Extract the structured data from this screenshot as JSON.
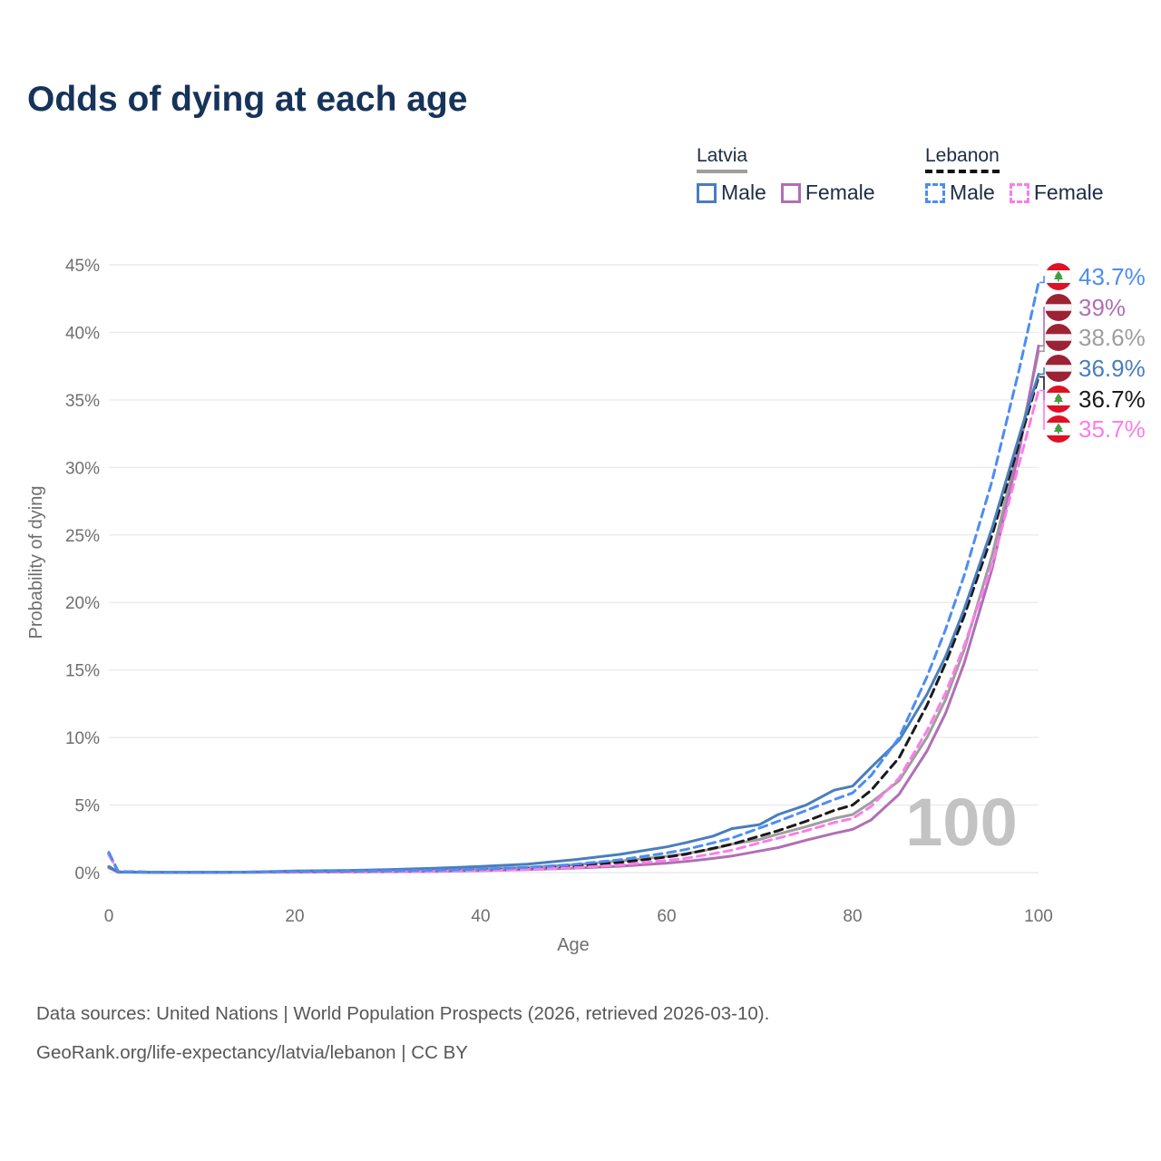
{
  "header": {
    "title": "Odds of dying at each age"
  },
  "legend": {
    "groups": [
      {
        "label": "Latvia",
        "underline": "solid",
        "underline_color": "#9e9e9e",
        "items": [
          {
            "label": "Male",
            "color": "#4a7ebb",
            "dash": "solid"
          },
          {
            "label": "Female",
            "color": "#b06fb5",
            "dash": "solid"
          }
        ]
      },
      {
        "label": "Lebanon",
        "underline": "dashed",
        "underline_color": "#111111",
        "items": [
          {
            "label": "Male",
            "color": "#4d8df2",
            "dash": "dashed"
          },
          {
            "label": "Female",
            "color": "#fb7de9",
            "dash": "dashed"
          }
        ]
      }
    ]
  },
  "chart_data": {
    "type": "line",
    "title": "Odds of dying at each age",
    "xlabel": "Age",
    "ylabel": "Probability of dying",
    "xlim": [
      0,
      100
    ],
    "ylim": [
      0,
      45
    ],
    "grid": "horizontal",
    "legend_position": "top-right",
    "age_counter": "100",
    "x_tick_values": [
      0,
      20,
      40,
      60,
      80,
      100
    ],
    "x_tick_labels": [
      "0",
      "20",
      "40",
      "60",
      "80",
      "100"
    ],
    "y_tick_values": [
      0,
      5,
      10,
      15,
      20,
      25,
      30,
      35,
      40,
      45
    ],
    "y_tick_labels": [
      "0%",
      "5%",
      "10%",
      "15%",
      "20%",
      "25%",
      "30%",
      "35%",
      "40%",
      "45%"
    ],
    "ages": [
      0,
      1,
      5,
      10,
      15,
      20,
      25,
      30,
      35,
      40,
      45,
      50,
      55,
      60,
      62,
      65,
      67,
      70,
      72,
      75,
      78,
      80,
      82,
      85,
      88,
      90,
      92,
      95,
      98,
      100
    ],
    "series": [
      {
        "id": "latvia-total",
        "name": "Latvia Total",
        "country": "latvia",
        "sex": "Total",
        "color": "#9e9e9e",
        "dash": "solid",
        "end_label": "38.6%",
        "values": [
          0.4,
          0.035,
          0.018,
          0.012,
          0.025,
          0.06,
          0.08,
          0.12,
          0.17,
          0.26,
          0.38,
          0.58,
          0.85,
          1.2,
          1.4,
          1.75,
          2.1,
          2.45,
          2.85,
          3.4,
          4.0,
          4.3,
          5.2,
          6.8,
          10.0,
          12.8,
          16.5,
          23.5,
          32.0,
          38.6
        ]
      },
      {
        "id": "latvia-female",
        "name": "Latvia Female",
        "country": "latvia",
        "sex": "Female",
        "color": "#b06fb5",
        "dash": "solid",
        "end_label": "39%",
        "values": [
          0.35,
          0.03,
          0.015,
          0.01,
          0.02,
          0.03,
          0.04,
          0.06,
          0.09,
          0.14,
          0.22,
          0.33,
          0.47,
          0.7,
          0.82,
          1.05,
          1.22,
          1.6,
          1.85,
          2.4,
          2.9,
          3.2,
          3.9,
          5.8,
          9.0,
          11.8,
          15.5,
          22.5,
          31.5,
          39.0
        ]
      },
      {
        "id": "lebanon-total",
        "name": "Lebanon Total",
        "country": "lebanon",
        "sex": "Total",
        "color": "#1a1a1a",
        "dash": "dashed",
        "end_label": "36.7%",
        "values": [
          1.4,
          0.075,
          0.028,
          0.018,
          0.032,
          0.06,
          0.075,
          0.1,
          0.14,
          0.2,
          0.3,
          0.48,
          0.75,
          1.15,
          1.35,
          1.8,
          2.1,
          2.7,
          3.1,
          3.8,
          4.6,
          5.0,
          6.1,
          8.5,
          12.4,
          15.5,
          19.0,
          25.0,
          32.0,
          36.7
        ]
      },
      {
        "id": "lebanon-female",
        "name": "Lebanon Female",
        "country": "lebanon",
        "sex": "Female",
        "color": "#fb7de9",
        "dash": "dashed",
        "end_label": "35.7%",
        "values": [
          1.3,
          0.07,
          0.025,
          0.015,
          0.025,
          0.04,
          0.05,
          0.07,
          0.1,
          0.15,
          0.23,
          0.36,
          0.56,
          0.9,
          1.05,
          1.4,
          1.65,
          2.2,
          2.55,
          3.1,
          3.7,
          4.0,
          4.9,
          7.0,
          10.5,
          13.3,
          16.8,
          22.8,
          30.5,
          35.7
        ]
      },
      {
        "id": "latvia-male",
        "name": "Latvia Male",
        "country": "latvia",
        "sex": "Male",
        "color": "#4a7ebb",
        "dash": "solid",
        "end_label": "36.9%",
        "values": [
          0.45,
          0.04,
          0.02,
          0.015,
          0.035,
          0.12,
          0.15,
          0.22,
          0.32,
          0.45,
          0.62,
          0.95,
          1.35,
          1.9,
          2.2,
          2.7,
          3.25,
          3.55,
          4.3,
          5.0,
          6.1,
          6.4,
          7.8,
          9.8,
          13.2,
          16.0,
          19.5,
          25.5,
          32.5,
          36.9
        ]
      },
      {
        "id": "lebanon-male",
        "name": "Lebanon Male",
        "country": "lebanon",
        "sex": "Male",
        "color": "#4d8df2",
        "dash": "dashed",
        "end_label": "43.7%",
        "values": [
          1.5,
          0.08,
          0.03,
          0.02,
          0.04,
          0.08,
          0.1,
          0.13,
          0.18,
          0.25,
          0.38,
          0.6,
          0.95,
          1.45,
          1.7,
          2.2,
          2.55,
          3.3,
          3.8,
          4.6,
          5.4,
          5.9,
          7.2,
          10.0,
          14.5,
          18.0,
          22.0,
          29.0,
          37.5,
          43.7
        ]
      }
    ]
  },
  "flags": {
    "latvia": {
      "red": "#9d2235",
      "white": "#f5f5f5"
    },
    "lebanon": {
      "red": "#df1125",
      "white": "#ffffff",
      "green": "#3f9e3f"
    }
  },
  "footer": {
    "line1": "Data sources: United Nations | World Population Prospects (2026, retrieved 2026-03-10).",
    "line2": "GeoRank.org/life-expectancy/latvia/lebanon | CC BY"
  }
}
